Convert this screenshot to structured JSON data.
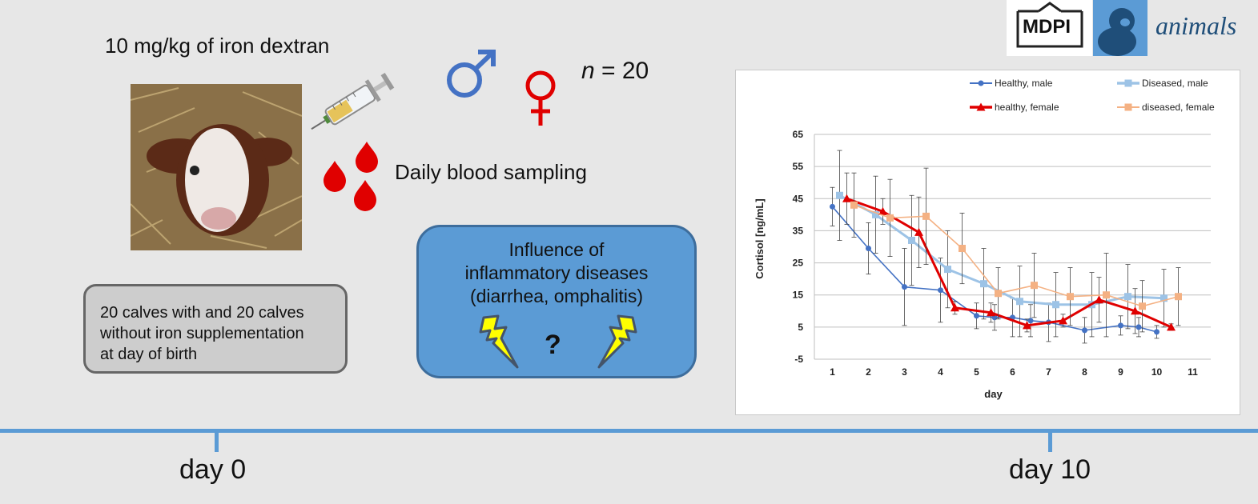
{
  "labels": {
    "iron_dose": "10 mg/kg of iron dextran",
    "n_italic": "n",
    "n_rest": " = 20",
    "blood_sampling": "Daily blood sampling",
    "calves_box": [
      "20 calves with and 20 calves",
      "without iron supplementation",
      "at day of birth"
    ],
    "disease_box": [
      "Influence of",
      "inflammatory diseases",
      "(diarrhea, omphalitis)"
    ],
    "question": "?",
    "day_start": "day 0",
    "day_end": "day 10"
  },
  "logo": {
    "publisher": "MDPI",
    "journal": "animals"
  },
  "icons": [
    "calf-photo",
    "syringe-icon",
    "male-symbol-icon",
    "female-symbol-icon",
    "blood-drop-icon",
    "lightning-icon"
  ],
  "colors": {
    "male": "#4472c4",
    "female": "#e00000",
    "blue_box": "#5b9bd5",
    "timeline": "#5b9bd5"
  },
  "chart_data": {
    "type": "line",
    "xlabel": "day",
    "ylabel": "Cortisol [ng/mL]",
    "xlim": [
      0.5,
      11.5
    ],
    "ylim": [
      -5,
      65
    ],
    "xticks": [
      1,
      2,
      3,
      4,
      5,
      6,
      7,
      8,
      9,
      10,
      11
    ],
    "yticks": [
      -5,
      5,
      15,
      25,
      35,
      45,
      55,
      65
    ],
    "grid": true,
    "legend": "top",
    "series": [
      {
        "name": "Healthy, male",
        "color": "#4472c4",
        "marker": "circle",
        "x": [
          1,
          2,
          3,
          4,
          5,
          5.5,
          6,
          6.5,
          7,
          8,
          9,
          9.5,
          10
        ],
        "y": [
          42.5,
          29.5,
          17.5,
          16.5,
          8.5,
          8.0,
          8.0,
          7.0,
          6.5,
          4.0,
          5.5,
          5.0,
          3.5
        ],
        "err": [
          6,
          8,
          12,
          10,
          4,
          4,
          6,
          5,
          6,
          4,
          3,
          3,
          2
        ]
      },
      {
        "name": "Diseased, male",
        "color": "#9dc3e6",
        "marker": "square",
        "x": [
          1.2,
          2.2,
          3.2,
          4.2,
          5.2,
          6.2,
          7.2,
          8.2,
          9.2,
          10.2
        ],
        "y": [
          46.0,
          40.0,
          32.0,
          23.0,
          18.5,
          13.0,
          12.0,
          12.0,
          14.5,
          14.0
        ],
        "err": [
          14,
          12,
          14,
          12,
          11,
          11,
          10,
          10,
          10,
          9
        ]
      },
      {
        "name": "healthy, female",
        "color": "#e00000",
        "marker": "triangle",
        "x": [
          1.4,
          2.4,
          3.4,
          4.4,
          5.4,
          6.4,
          7.4,
          8.4,
          9.4,
          10.4
        ],
        "y": [
          45.0,
          41.0,
          34.5,
          11.0,
          9.5,
          5.5,
          7.0,
          13.5,
          10.0,
          5.0
        ],
        "err": [
          8,
          4,
          11,
          2,
          3,
          2,
          2,
          7,
          7,
          1
        ]
      },
      {
        "name": "diseased, female",
        "color": "#f4b183",
        "marker": "square",
        "x": [
          1.6,
          2.6,
          3.6,
          4.6,
          5.6,
          6.6,
          7.6,
          8.6,
          9.6,
          10.6
        ],
        "y": [
          43.0,
          39.0,
          39.5,
          29.5,
          15.5,
          18.0,
          14.5,
          15.0,
          11.5,
          14.5
        ],
        "err": [
          10,
          12,
          15,
          11,
          8,
          10,
          9,
          13,
          8,
          9
        ]
      }
    ]
  }
}
